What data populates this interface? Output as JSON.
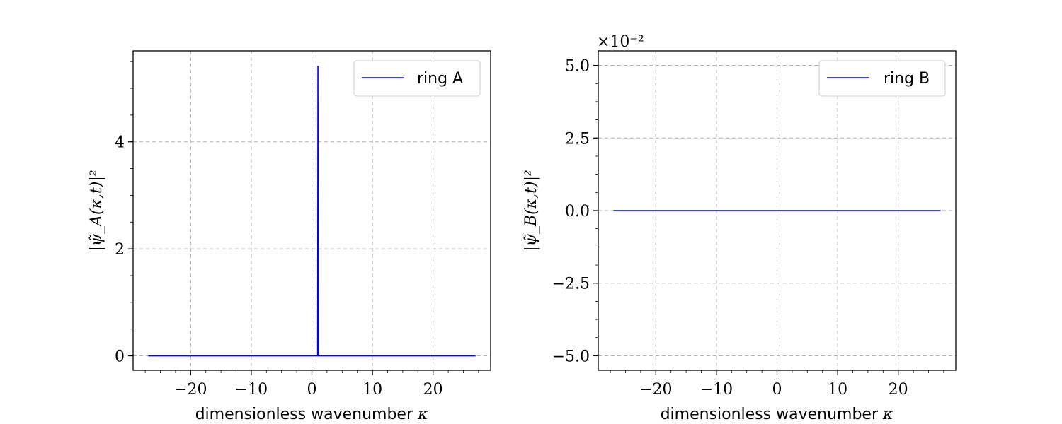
{
  "chart_data": [
    {
      "type": "line",
      "xlabel_text": "dimensionless wavenumber",
      "xlabel_symbol": "κ",
      "ylabel": "|ψ̃_A(κ,t)|²",
      "xlim": [
        -29.5,
        29.5
      ],
      "ylim": [
        -0.27,
        5.7
      ],
      "xticks": [
        -20,
        -10,
        0,
        10,
        20
      ],
      "xtick_labels": [
        "−20",
        "−10",
        "0",
        "10",
        "20"
      ],
      "yticks": [
        0,
        2,
        4
      ],
      "ytick_labels": [
        "0",
        "2",
        "4"
      ],
      "grid": true,
      "legend_position": "upper right",
      "series": [
        {
          "name": "ring A",
          "color": "#0000ff",
          "x": [
            -27,
            0.95,
            1.0,
            1.05,
            27
          ],
          "y": [
            0,
            0,
            5.42,
            0,
            0
          ]
        }
      ]
    },
    {
      "type": "line",
      "xlabel_text": "dimensionless wavenumber",
      "xlabel_symbol": "κ",
      "ylabel": "|ψ̃_B(κ,t)|²",
      "offset_text": "×10⁻²",
      "xlim": [
        -29.5,
        29.5
      ],
      "ylim": [
        -5.5,
        5.5
      ],
      "xticks": [
        -20,
        -10,
        0,
        10,
        20
      ],
      "xtick_labels": [
        "−20",
        "−10",
        "0",
        "10",
        "20"
      ],
      "yticks": [
        -5.0,
        -2.5,
        0.0,
        2.5,
        5.0
      ],
      "ytick_labels": [
        "−5.0",
        "−2.5",
        "0.0",
        "2.5",
        "5.0"
      ],
      "grid": true,
      "legend_position": "upper right",
      "series": [
        {
          "name": "ring B",
          "color": "#0000ff",
          "x": [
            -27,
            27
          ],
          "y": [
            0,
            0
          ]
        }
      ]
    }
  ]
}
